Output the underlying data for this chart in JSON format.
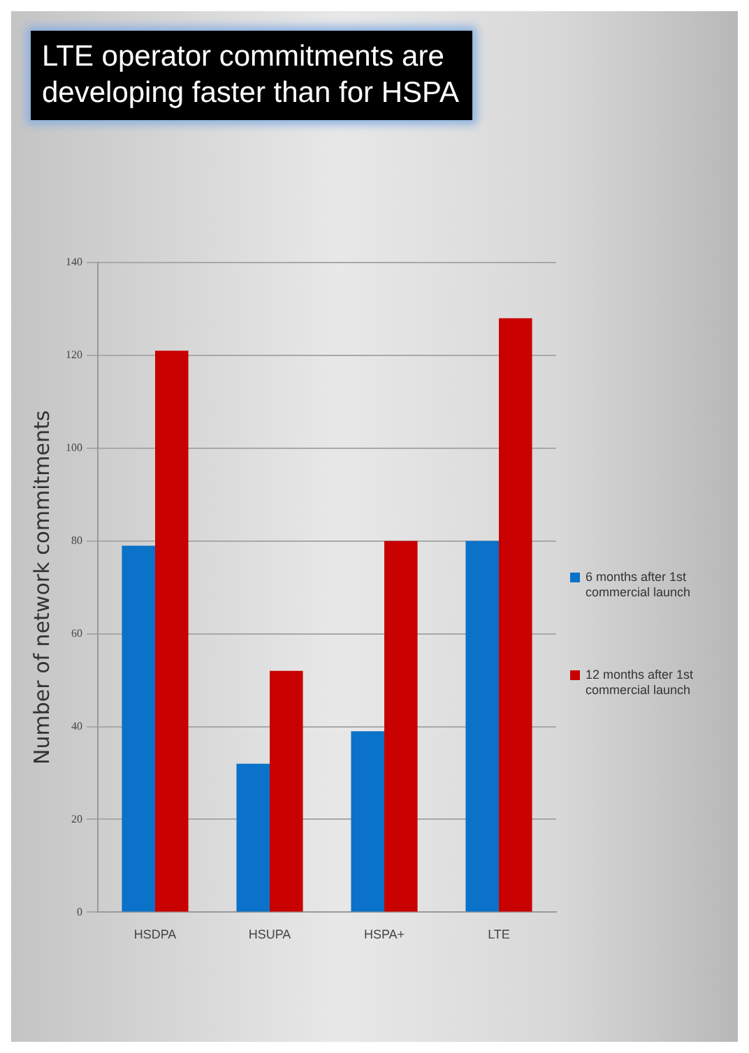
{
  "chart_data": {
    "type": "bar",
    "title": "LTE operator commitments are developing faster than for HSPA",
    "categories": [
      "HSDPA",
      "HSUPA",
      "HSPA+",
      "LTE"
    ],
    "series": [
      {
        "name": "6 months after 1st commercial launch",
        "color": "#0a72c8",
        "values": [
          79,
          32,
          39,
          80
        ]
      },
      {
        "name": "12 months after 1st commercial launch",
        "color": "#c80000",
        "values": [
          121,
          52,
          80,
          128
        ]
      }
    ],
    "ylabel": "Number of network commitments",
    "ylim": [
      0,
      140
    ],
    "yticks": [
      0,
      20,
      40,
      60,
      80,
      100,
      120,
      140
    ],
    "grid": "y",
    "legend": "right"
  }
}
